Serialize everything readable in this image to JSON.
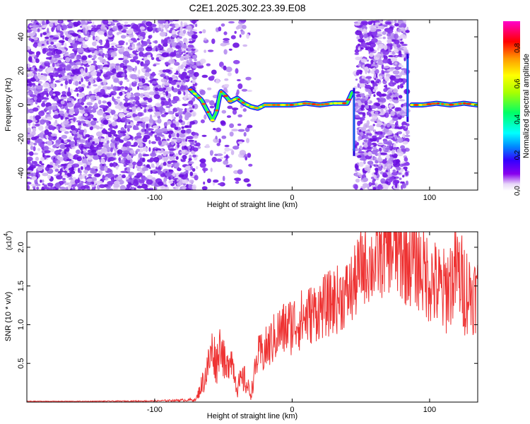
{
  "figure_title": "C2E1.2025.302.23.39.E08",
  "chart_data": [
    {
      "type": "heatmap",
      "title": "C2E1.2025.302.23.39.E08",
      "xlabel": "Height of straight line (km)",
      "ylabel": "Frequency (Hz)",
      "xlim": [
        -193,
        135
      ],
      "ylim": [
        -50,
        50
      ],
      "x_ticks": [
        -100,
        0,
        100
      ],
      "y_ticks": [
        -40,
        -20,
        0,
        20,
        40
      ],
      "colorbar": {
        "label": "Normalized spectral amplitude",
        "range": [
          0,
          0.95
        ],
        "ticks": [
          0.0,
          0.2,
          0.4,
          0.6,
          0.8
        ],
        "colormap": "rainbow (white-purple-blue-cyan-green-yellow-orange-red-magenta)"
      },
      "regions": [
        {
          "x": [
            -193,
            -70
          ],
          "description": "broadband scattered noise, low amplitude (purple)"
        },
        {
          "x": [
            -70,
            -20
          ],
          "description": "signal forming near 0 Hz with fluctuations of +/-10 Hz"
        },
        {
          "x": [
            -20,
            45
          ],
          "description": "narrow band centered near 0 Hz, amplitude up to ~0.9"
        },
        {
          "x": [
            46,
            84
          ],
          "description": "broadband scattered noise"
        },
        {
          "x": [
            87,
            135
          ],
          "description": "narrow band near 0 Hz, high amplitude"
        }
      ],
      "ridge": {
        "x": [
          -74,
          -70,
          -66,
          -62,
          -58,
          -55,
          -52,
          -48,
          -45,
          -40,
          -35,
          -30,
          -25,
          -20,
          -10,
          0,
          10,
          20,
          30,
          40,
          44
        ],
        "y": [
          9,
          6,
          3,
          -3,
          -9,
          -4,
          8,
          5,
          2,
          4,
          1,
          -1,
          -2,
          0,
          0,
          0,
          1,
          0,
          1,
          1,
          8
        ]
      },
      "ridge_right": {
        "x": [
          87,
          95,
          105,
          115,
          125,
          135
        ],
        "y": [
          0,
          0,
          1,
          0,
          1,
          0
        ]
      }
    },
    {
      "type": "line",
      "xlabel": "Height of straight line (km)",
      "ylabel": "SNR (10 * v/v)",
      "y_multiplier_label": "(x10",
      "y_multiplier_exponent": "4",
      "y_multiplier_close": ")",
      "xlim": [
        -193,
        135
      ],
      "ylim": [
        0,
        22000
      ],
      "x_ticks": [
        -100,
        0,
        100
      ],
      "y_ticks": [
        5000,
        10000,
        15000,
        20000
      ],
      "y_tick_labels": [
        "0.5",
        "1.0",
        "1.5",
        "2.0"
      ],
      "series": [
        {
          "color": "#ee3333",
          "x": [
            -193,
            -150,
            -100,
            -70,
            -62,
            -58,
            -55,
            -52,
            -48,
            -45,
            -40,
            -35,
            -30,
            -25,
            -20,
            -10,
            0,
            10,
            20,
            30,
            40,
            45,
            50,
            60,
            70,
            80,
            90,
            100,
            110,
            120,
            125,
            130,
            135
          ],
          "y": [
            100,
            100,
            150,
            300,
            4000,
            7000,
            5000,
            8000,
            3500,
            6500,
            2000,
            3000,
            1000,
            6000,
            6500,
            9000,
            10000,
            11000,
            12000,
            13000,
            14000,
            15000,
            17500,
            18000,
            20000,
            19000,
            18000,
            16000,
            14000,
            17000,
            15000,
            14000,
            14000
          ],
          "spread": [
            50,
            50,
            80,
            200,
            2500,
            3000,
            3000,
            3000,
            2500,
            2500,
            1500,
            2000,
            800,
            2500,
            3000,
            3500,
            4000,
            4000,
            4000,
            4500,
            4500,
            5000,
            5000,
            5500,
            6000,
            6500,
            6000,
            6000,
            6000,
            6000,
            6500,
            5500,
            5000
          ]
        }
      ]
    }
  ]
}
